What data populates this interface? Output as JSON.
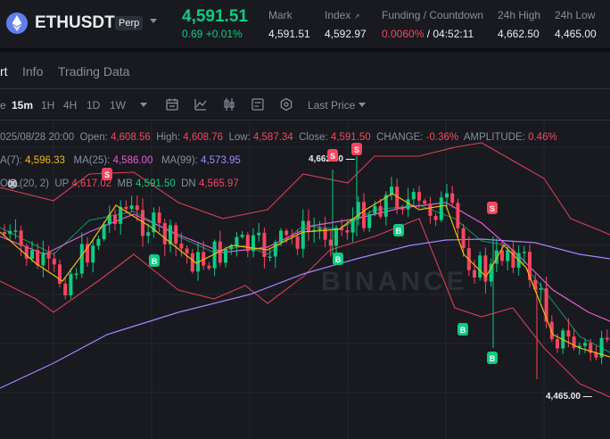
{
  "header": {
    "symbol": "ETHUSDT",
    "contract_type": "Perp",
    "last_price": "4,591.51",
    "change": "0.69 +0.01%",
    "stats": [
      {
        "label": "Mark",
        "value": "4,591.51"
      },
      {
        "label": "Index",
        "value": "4,592.97"
      },
      {
        "label": "Funding / Countdown",
        "value_rate": "0.0060%",
        "value_countdown": " / 04:52:11"
      },
      {
        "label": "24h High",
        "value": "4,662.50"
      },
      {
        "label": "24h Low",
        "value": "4,465.00"
      }
    ],
    "colors": {
      "up": "#0ecb81",
      "down": "#f6465d",
      "eth": "#627eea"
    }
  },
  "tabs": [
    "rt",
    "Info",
    "Trading Data"
  ],
  "toolbar": {
    "timeframes": [
      "e",
      "15m",
      "1H",
      "4H",
      "1D",
      "1W"
    ],
    "active_timeframe": "15m",
    "price_type": "Last Price",
    "icons": [
      "calendar-icon",
      "indicator-icon",
      "candle-type-icon",
      "settings-list-icon",
      "hexagon-settings-icon"
    ]
  },
  "legend": {
    "ohlc": {
      "date": "025/08/28 20:00",
      "open_label": "Open:",
      "open": "4,608.56",
      "high_label": "High:",
      "high": "4,608.76",
      "low_label": "Low:",
      "low": "4,587.34",
      "close_label": "Close:",
      "close": "4,591.50",
      "change_label": "CHANGE:",
      "change": "-0.36%",
      "amplitude_label": "AMPLITUDE:",
      "amplitude": "0.46%"
    },
    "ma": {
      "ma7_label": "A(7):",
      "ma7": "4,596.33",
      "ma25_label": "MA(25):",
      "ma25": "4,586.00",
      "ma99_label": "MA(99):",
      "ma99": "4,573.95"
    },
    "boll": {
      "label": "OLL(20, 2)",
      "up_label": "UP",
      "up": "4,617.02",
      "mb_label": "MB",
      "mb": "4,591.50",
      "dn_label": "DN",
      "dn": "4,565.97"
    }
  },
  "chart_data": {
    "type": "candlestick",
    "high_annotation": "4,662.50",
    "low_annotation": "4,465.00",
    "signal_labels": {
      "buy": "B",
      "sell": "S"
    },
    "watermark": "BINANCE"
  }
}
